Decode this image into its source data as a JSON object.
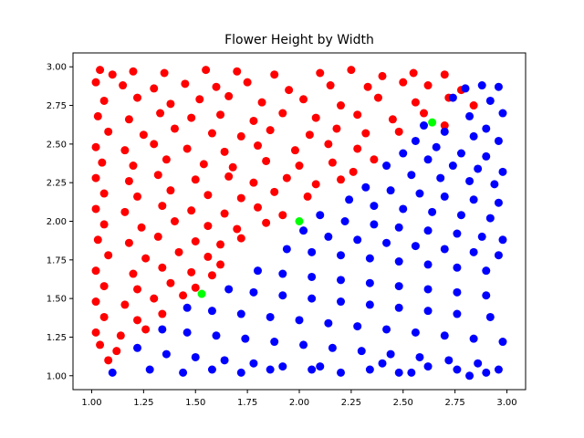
{
  "chart_data": {
    "type": "scatter",
    "title": "Flower Height by Width",
    "xlabel": "",
    "ylabel": "",
    "xlim": [
      0.91,
      3.09
    ],
    "ylim": [
      0.91,
      3.09
    ],
    "xticks": [
      1.0,
      1.25,
      1.5,
      1.75,
      2.0,
      2.25,
      2.5,
      2.75,
      3.0
    ],
    "yticks": [
      1.0,
      1.25,
      1.5,
      1.75,
      2.0,
      2.25,
      2.5,
      2.75,
      3.0
    ],
    "xtick_labels": [
      "1.00",
      "1.25",
      "1.50",
      "1.75",
      "2.00",
      "2.25",
      "2.50",
      "2.75",
      "3.00"
    ],
    "ytick_labels": [
      "1.00",
      "1.25",
      "1.50",
      "1.75",
      "2.00",
      "2.25",
      "2.50",
      "2.75",
      "3.00"
    ],
    "grid": false,
    "legend": "none",
    "series": [
      {
        "color": "#ff0000",
        "points": [
          [
            1.04,
            2.98
          ],
          [
            1.1,
            2.95
          ],
          [
            1.2,
            2.97
          ],
          [
            1.35,
            2.96
          ],
          [
            1.55,
            2.98
          ],
          [
            1.7,
            2.97
          ],
          [
            1.88,
            2.95
          ],
          [
            2.1,
            2.96
          ],
          [
            2.25,
            2.98
          ],
          [
            2.4,
            2.94
          ],
          [
            2.55,
            2.96
          ],
          [
            2.7,
            2.95
          ],
          [
            1.02,
            2.9
          ],
          [
            1.15,
            2.88
          ],
          [
            1.3,
            2.86
          ],
          [
            1.45,
            2.89
          ],
          [
            1.6,
            2.87
          ],
          [
            1.75,
            2.9
          ],
          [
            1.95,
            2.85
          ],
          [
            2.15,
            2.88
          ],
          [
            2.33,
            2.87
          ],
          [
            2.5,
            2.9
          ],
          [
            2.62,
            2.88
          ],
          [
            2.78,
            2.85
          ],
          [
            1.06,
            2.78
          ],
          [
            1.22,
            2.8
          ],
          [
            1.38,
            2.76
          ],
          [
            1.52,
            2.79
          ],
          [
            1.66,
            2.81
          ],
          [
            1.82,
            2.77
          ],
          [
            2.02,
            2.79
          ],
          [
            2.2,
            2.75
          ],
          [
            2.38,
            2.8
          ],
          [
            2.56,
            2.77
          ],
          [
            2.72,
            2.8
          ],
          [
            2.84,
            2.75
          ],
          [
            1.03,
            2.68
          ],
          [
            1.18,
            2.66
          ],
          [
            1.33,
            2.7
          ],
          [
            1.48,
            2.67
          ],
          [
            1.62,
            2.69
          ],
          [
            1.78,
            2.65
          ],
          [
            1.92,
            2.7
          ],
          [
            2.08,
            2.67
          ],
          [
            2.28,
            2.69
          ],
          [
            2.45,
            2.66
          ],
          [
            2.6,
            2.7
          ],
          [
            2.7,
            2.62
          ],
          [
            1.08,
            2.58
          ],
          [
            1.25,
            2.56
          ],
          [
            1.4,
            2.6
          ],
          [
            1.58,
            2.57
          ],
          [
            1.72,
            2.55
          ],
          [
            1.86,
            2.59
          ],
          [
            2.05,
            2.56
          ],
          [
            2.18,
            2.6
          ],
          [
            2.32,
            2.57
          ],
          [
            2.48,
            2.58
          ],
          [
            1.02,
            2.48
          ],
          [
            1.16,
            2.46
          ],
          [
            1.3,
            2.5
          ],
          [
            1.46,
            2.47
          ],
          [
            1.64,
            2.45
          ],
          [
            1.8,
            2.49
          ],
          [
            1.98,
            2.46
          ],
          [
            2.14,
            2.5
          ],
          [
            2.28,
            2.47
          ],
          [
            2.36,
            2.4
          ],
          [
            1.05,
            2.38
          ],
          [
            1.2,
            2.36
          ],
          [
            1.36,
            2.4
          ],
          [
            1.54,
            2.37
          ],
          [
            1.68,
            2.35
          ],
          [
            1.84,
            2.39
          ],
          [
            2.0,
            2.36
          ],
          [
            2.16,
            2.38
          ],
          [
            2.26,
            2.32
          ],
          [
            1.02,
            2.28
          ],
          [
            1.18,
            2.26
          ],
          [
            1.32,
            2.3
          ],
          [
            1.5,
            2.27
          ],
          [
            1.66,
            2.29
          ],
          [
            1.78,
            2.25
          ],
          [
            1.94,
            2.28
          ],
          [
            2.08,
            2.24
          ],
          [
            2.2,
            2.27
          ],
          [
            1.06,
            2.18
          ],
          [
            1.22,
            2.16
          ],
          [
            1.38,
            2.2
          ],
          [
            1.56,
            2.17
          ],
          [
            1.72,
            2.15
          ],
          [
            1.88,
            2.19
          ],
          [
            2.04,
            2.16
          ],
          [
            1.02,
            2.08
          ],
          [
            1.16,
            2.06
          ],
          [
            1.34,
            2.1
          ],
          [
            1.48,
            2.07
          ],
          [
            1.64,
            2.05
          ],
          [
            1.8,
            2.09
          ],
          [
            1.92,
            2.04
          ],
          [
            1.06,
            1.98
          ],
          [
            1.24,
            1.96
          ],
          [
            1.4,
            2.0
          ],
          [
            1.56,
            1.97
          ],
          [
            1.7,
            1.95
          ],
          [
            1.84,
            1.99
          ],
          [
            1.03,
            1.88
          ],
          [
            1.18,
            1.86
          ],
          [
            1.32,
            1.9
          ],
          [
            1.5,
            1.87
          ],
          [
            1.62,
            1.85
          ],
          [
            1.72,
            1.89
          ],
          [
            1.08,
            1.78
          ],
          [
            1.26,
            1.76
          ],
          [
            1.42,
            1.8
          ],
          [
            1.56,
            1.77
          ],
          [
            1.62,
            1.72
          ],
          [
            1.02,
            1.68
          ],
          [
            1.2,
            1.66
          ],
          [
            1.34,
            1.7
          ],
          [
            1.48,
            1.67
          ],
          [
            1.58,
            1.65
          ],
          [
            1.06,
            1.58
          ],
          [
            1.22,
            1.56
          ],
          [
            1.38,
            1.6
          ],
          [
            1.5,
            1.57
          ],
          [
            1.02,
            1.48
          ],
          [
            1.16,
            1.46
          ],
          [
            1.3,
            1.5
          ],
          [
            1.44,
            1.52
          ],
          [
            1.06,
            1.38
          ],
          [
            1.22,
            1.36
          ],
          [
            1.34,
            1.4
          ],
          [
            1.02,
            1.28
          ],
          [
            1.14,
            1.26
          ],
          [
            1.26,
            1.3
          ],
          [
            1.04,
            1.2
          ],
          [
            1.12,
            1.16
          ],
          [
            1.08,
            1.1
          ]
        ]
      },
      {
        "color": "#0000ff",
        "points": [
          [
            2.8,
            2.86
          ],
          [
            2.88,
            2.88
          ],
          [
            2.96,
            2.87
          ],
          [
            2.74,
            2.8
          ],
          [
            2.92,
            2.78
          ],
          [
            2.98,
            2.7
          ],
          [
            2.82,
            2.68
          ],
          [
            2.9,
            2.6
          ],
          [
            2.6,
            2.62
          ],
          [
            2.7,
            2.58
          ],
          [
            2.84,
            2.55
          ],
          [
            2.96,
            2.52
          ],
          [
            2.56,
            2.52
          ],
          [
            2.66,
            2.48
          ],
          [
            2.78,
            2.44
          ],
          [
            2.9,
            2.42
          ],
          [
            2.5,
            2.44
          ],
          [
            2.62,
            2.4
          ],
          [
            2.74,
            2.36
          ],
          [
            2.86,
            2.34
          ],
          [
            2.98,
            2.32
          ],
          [
            2.42,
            2.36
          ],
          [
            2.54,
            2.3
          ],
          [
            2.68,
            2.28
          ],
          [
            2.82,
            2.26
          ],
          [
            2.94,
            2.24
          ],
          [
            2.32,
            2.22
          ],
          [
            2.44,
            2.2
          ],
          [
            2.58,
            2.18
          ],
          [
            2.7,
            2.16
          ],
          [
            2.84,
            2.14
          ],
          [
            2.96,
            2.12
          ],
          [
            2.24,
            2.14
          ],
          [
            2.36,
            2.1
          ],
          [
            2.5,
            2.08
          ],
          [
            2.64,
            2.06
          ],
          [
            2.78,
            2.04
          ],
          [
            2.92,
            2.02
          ],
          [
            2.1,
            2.04
          ],
          [
            2.22,
            2.0
          ],
          [
            2.36,
            1.98
          ],
          [
            2.48,
            1.96
          ],
          [
            2.62,
            1.94
          ],
          [
            2.76,
            1.92
          ],
          [
            2.88,
            1.9
          ],
          [
            2.98,
            1.88
          ],
          [
            2.02,
            1.94
          ],
          [
            2.14,
            1.9
          ],
          [
            2.28,
            1.88
          ],
          [
            2.42,
            1.86
          ],
          [
            2.56,
            1.84
          ],
          [
            2.7,
            1.82
          ],
          [
            2.84,
            1.8
          ],
          [
            2.96,
            1.78
          ],
          [
            1.94,
            1.82
          ],
          [
            2.06,
            1.8
          ],
          [
            2.2,
            1.78
          ],
          [
            2.34,
            1.76
          ],
          [
            2.48,
            1.74
          ],
          [
            2.62,
            1.72
          ],
          [
            2.76,
            1.7
          ],
          [
            2.9,
            1.68
          ],
          [
            1.8,
            1.68
          ],
          [
            1.92,
            1.66
          ],
          [
            2.06,
            1.64
          ],
          [
            2.2,
            1.62
          ],
          [
            2.34,
            1.6
          ],
          [
            2.48,
            1.58
          ],
          [
            2.62,
            1.56
          ],
          [
            2.76,
            1.54
          ],
          [
            2.9,
            1.52
          ],
          [
            1.66,
            1.56
          ],
          [
            1.78,
            1.54
          ],
          [
            1.92,
            1.52
          ],
          [
            2.06,
            1.5
          ],
          [
            2.2,
            1.48
          ],
          [
            2.34,
            1.46
          ],
          [
            2.48,
            1.44
          ],
          [
            2.62,
            1.42
          ],
          [
            2.76,
            1.4
          ],
          [
            2.92,
            1.38
          ],
          [
            1.46,
            1.44
          ],
          [
            1.58,
            1.42
          ],
          [
            1.72,
            1.4
          ],
          [
            1.86,
            1.38
          ],
          [
            2.0,
            1.36
          ],
          [
            2.14,
            1.34
          ],
          [
            2.28,
            1.32
          ],
          [
            2.42,
            1.3
          ],
          [
            2.56,
            1.28
          ],
          [
            2.7,
            1.26
          ],
          [
            2.84,
            1.24
          ],
          [
            2.98,
            1.22
          ],
          [
            1.34,
            1.3
          ],
          [
            1.46,
            1.28
          ],
          [
            1.6,
            1.26
          ],
          [
            1.74,
            1.24
          ],
          [
            1.88,
            1.22
          ],
          [
            2.02,
            1.2
          ],
          [
            2.16,
            1.18
          ],
          [
            2.3,
            1.16
          ],
          [
            2.44,
            1.14
          ],
          [
            2.58,
            1.12
          ],
          [
            2.72,
            1.1
          ],
          [
            2.86,
            1.08
          ],
          [
            1.22,
            1.18
          ],
          [
            1.36,
            1.14
          ],
          [
            1.5,
            1.12
          ],
          [
            1.64,
            1.1
          ],
          [
            1.78,
            1.08
          ],
          [
            1.92,
            1.06
          ],
          [
            2.06,
            1.04
          ],
          [
            2.2,
            1.02
          ],
          [
            2.34,
            1.04
          ],
          [
            2.48,
            1.02
          ],
          [
            2.62,
            1.06
          ],
          [
            2.76,
            1.04
          ],
          [
            2.9,
            1.02
          ],
          [
            1.1,
            1.02
          ],
          [
            1.28,
            1.04
          ],
          [
            1.44,
            1.02
          ],
          [
            1.58,
            1.04
          ],
          [
            1.72,
            1.02
          ],
          [
            1.86,
            1.04
          ],
          [
            2.1,
            1.06
          ],
          [
            2.4,
            1.08
          ],
          [
            2.54,
            1.02
          ],
          [
            2.82,
            1.0
          ],
          [
            2.96,
            1.04
          ]
        ]
      },
      {
        "color": "#00ff00",
        "points": [
          [
            2.64,
            2.64
          ],
          [
            2.0,
            2.0
          ],
          [
            1.53,
            1.53
          ]
        ]
      }
    ]
  }
}
